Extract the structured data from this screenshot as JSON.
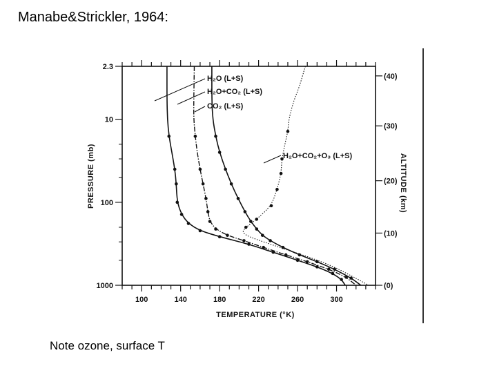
{
  "slide": {
    "title": "Manabe&Strickler, 1964:",
    "note": "Note ozone, surface T"
  },
  "chart_data": {
    "type": "line",
    "title": "",
    "xlabel": "TEMPERATURE (°K)",
    "ylabel": "PRESSURE (mb)",
    "y2label": "ALTITUDE (km)",
    "xlim": [
      80,
      340
    ],
    "ylim": [
      2.3,
      1000
    ],
    "yscale": "log",
    "y_inverted": true,
    "x_ticks": [
      100,
      140,
      180,
      220,
      260,
      300
    ],
    "x_tick_labels": [
      "100",
      "140",
      "180",
      "220",
      "260",
      "300"
    ],
    "y_ticks": [
      2.3,
      10,
      100,
      1000
    ],
    "y_tick_labels": [
      "2.3",
      "10",
      "100",
      "1000"
    ],
    "alt_ticks": [
      {
        "p": 3.0,
        "label": "(40)"
      },
      {
        "p": 12,
        "label": "(30)"
      },
      {
        "p": 55,
        "label": "(20)"
      },
      {
        "p": 235,
        "label": "(10)"
      },
      {
        "p": 1000,
        "label": "(0)"
      }
    ],
    "grid": false,
    "series": [
      {
        "name": "H₂O (L+S)",
        "style": "solid",
        "points": [
          [
            126,
            2.3
          ],
          [
            126,
            6
          ],
          [
            126.5,
            10
          ],
          [
            128,
            16
          ],
          [
            131,
            25
          ],
          [
            134,
            40
          ],
          [
            135.5,
            60
          ],
          [
            136.5,
            100
          ],
          [
            141,
            140
          ],
          [
            148,
            180
          ],
          [
            160,
            220
          ],
          [
            180,
            260
          ],
          [
            210,
            320
          ],
          [
            235,
            400
          ],
          [
            260,
            500
          ],
          [
            280,
            600
          ],
          [
            296,
            720
          ],
          [
            305,
            850
          ],
          [
            309,
            1000
          ]
        ],
        "markers": [
          [
            128,
            16
          ],
          [
            134,
            40
          ],
          [
            135.5,
            60
          ],
          [
            136.5,
            100
          ],
          [
            141,
            140
          ],
          [
            148,
            180
          ],
          [
            160,
            220
          ],
          [
            180,
            260
          ],
          [
            210,
            320
          ],
          [
            235,
            400
          ],
          [
            260,
            500
          ],
          [
            280,
            600
          ],
          [
            296,
            720
          ],
          [
            305,
            850
          ]
        ]
      },
      {
        "name": "H₂O+CO₂ (L+S)",
        "style": "dashdot",
        "points": [
          [
            154,
            2.3
          ],
          [
            153.5,
            6
          ],
          [
            153.5,
            10
          ],
          [
            155,
            16
          ],
          [
            157,
            25
          ],
          [
            160,
            40
          ],
          [
            163,
            60
          ],
          [
            166,
            90
          ],
          [
            168,
            130
          ],
          [
            170,
            170
          ],
          [
            176,
            210
          ],
          [
            188,
            250
          ],
          [
            205,
            290
          ],
          [
            225,
            350
          ],
          [
            248,
            430
          ],
          [
            270,
            520
          ],
          [
            292,
            640
          ],
          [
            310,
            800
          ],
          [
            320,
            1000
          ]
        ],
        "markers": [
          [
            155,
            16
          ],
          [
            160,
            40
          ],
          [
            163,
            60
          ],
          [
            166,
            90
          ],
          [
            168,
            130
          ],
          [
            170,
            170
          ],
          [
            176,
            210
          ],
          [
            188,
            250
          ],
          [
            205,
            290
          ],
          [
            225,
            350
          ],
          [
            248,
            430
          ],
          [
            270,
            520
          ],
          [
            292,
            640
          ],
          [
            310,
            800
          ]
        ]
      },
      {
        "name": "CO₂ (L+S)",
        "style": "solid",
        "points": [
          [
            172,
            2.3
          ],
          [
            172,
            6
          ],
          [
            173,
            10
          ],
          [
            176,
            16
          ],
          [
            180,
            25
          ],
          [
            186,
            40
          ],
          [
            192,
            60
          ],
          [
            199,
            90
          ],
          [
            206,
            130
          ],
          [
            212,
            170
          ],
          [
            218,
            210
          ],
          [
            224,
            250
          ],
          [
            232,
            290
          ],
          [
            245,
            350
          ],
          [
            262,
            430
          ],
          [
            280,
            520
          ],
          [
            298,
            640
          ],
          [
            315,
            820
          ],
          [
            325,
            1000
          ]
        ],
        "markers": [
          [
            176,
            16
          ],
          [
            180,
            25
          ],
          [
            186,
            40
          ],
          [
            192,
            60
          ],
          [
            199,
            90
          ],
          [
            206,
            130
          ],
          [
            212,
            170
          ],
          [
            218,
            210
          ],
          [
            224,
            250
          ],
          [
            232,
            290
          ],
          [
            245,
            350
          ],
          [
            262,
            430
          ],
          [
            280,
            520
          ],
          [
            298,
            640
          ],
          [
            315,
            820
          ]
        ]
      },
      {
        "name": "H₂O+CO₂+O₃ (L+S)",
        "style": "dotted",
        "points": [
          [
            268,
            2.3
          ],
          [
            262,
            4
          ],
          [
            256,
            6
          ],
          [
            251,
            10
          ],
          [
            250,
            14
          ],
          [
            247,
            20
          ],
          [
            244,
            30
          ],
          [
            243,
            45
          ],
          [
            239,
            70
          ],
          [
            233,
            110
          ],
          [
            218,
            160
          ],
          [
            207,
            200
          ],
          [
            203,
            230
          ],
          [
            210,
            260
          ],
          [
            225,
            300
          ],
          [
            245,
            360
          ],
          [
            270,
            450
          ],
          [
            295,
            580
          ],
          [
            318,
            800
          ],
          [
            333,
            1000
          ]
        ],
        "markers": [
          [
            250,
            14
          ],
          [
            244,
            30
          ],
          [
            243,
            45
          ],
          [
            239,
            70
          ],
          [
            233,
            110
          ],
          [
            218,
            160
          ],
          [
            207,
            200
          ]
        ]
      }
    ]
  }
}
